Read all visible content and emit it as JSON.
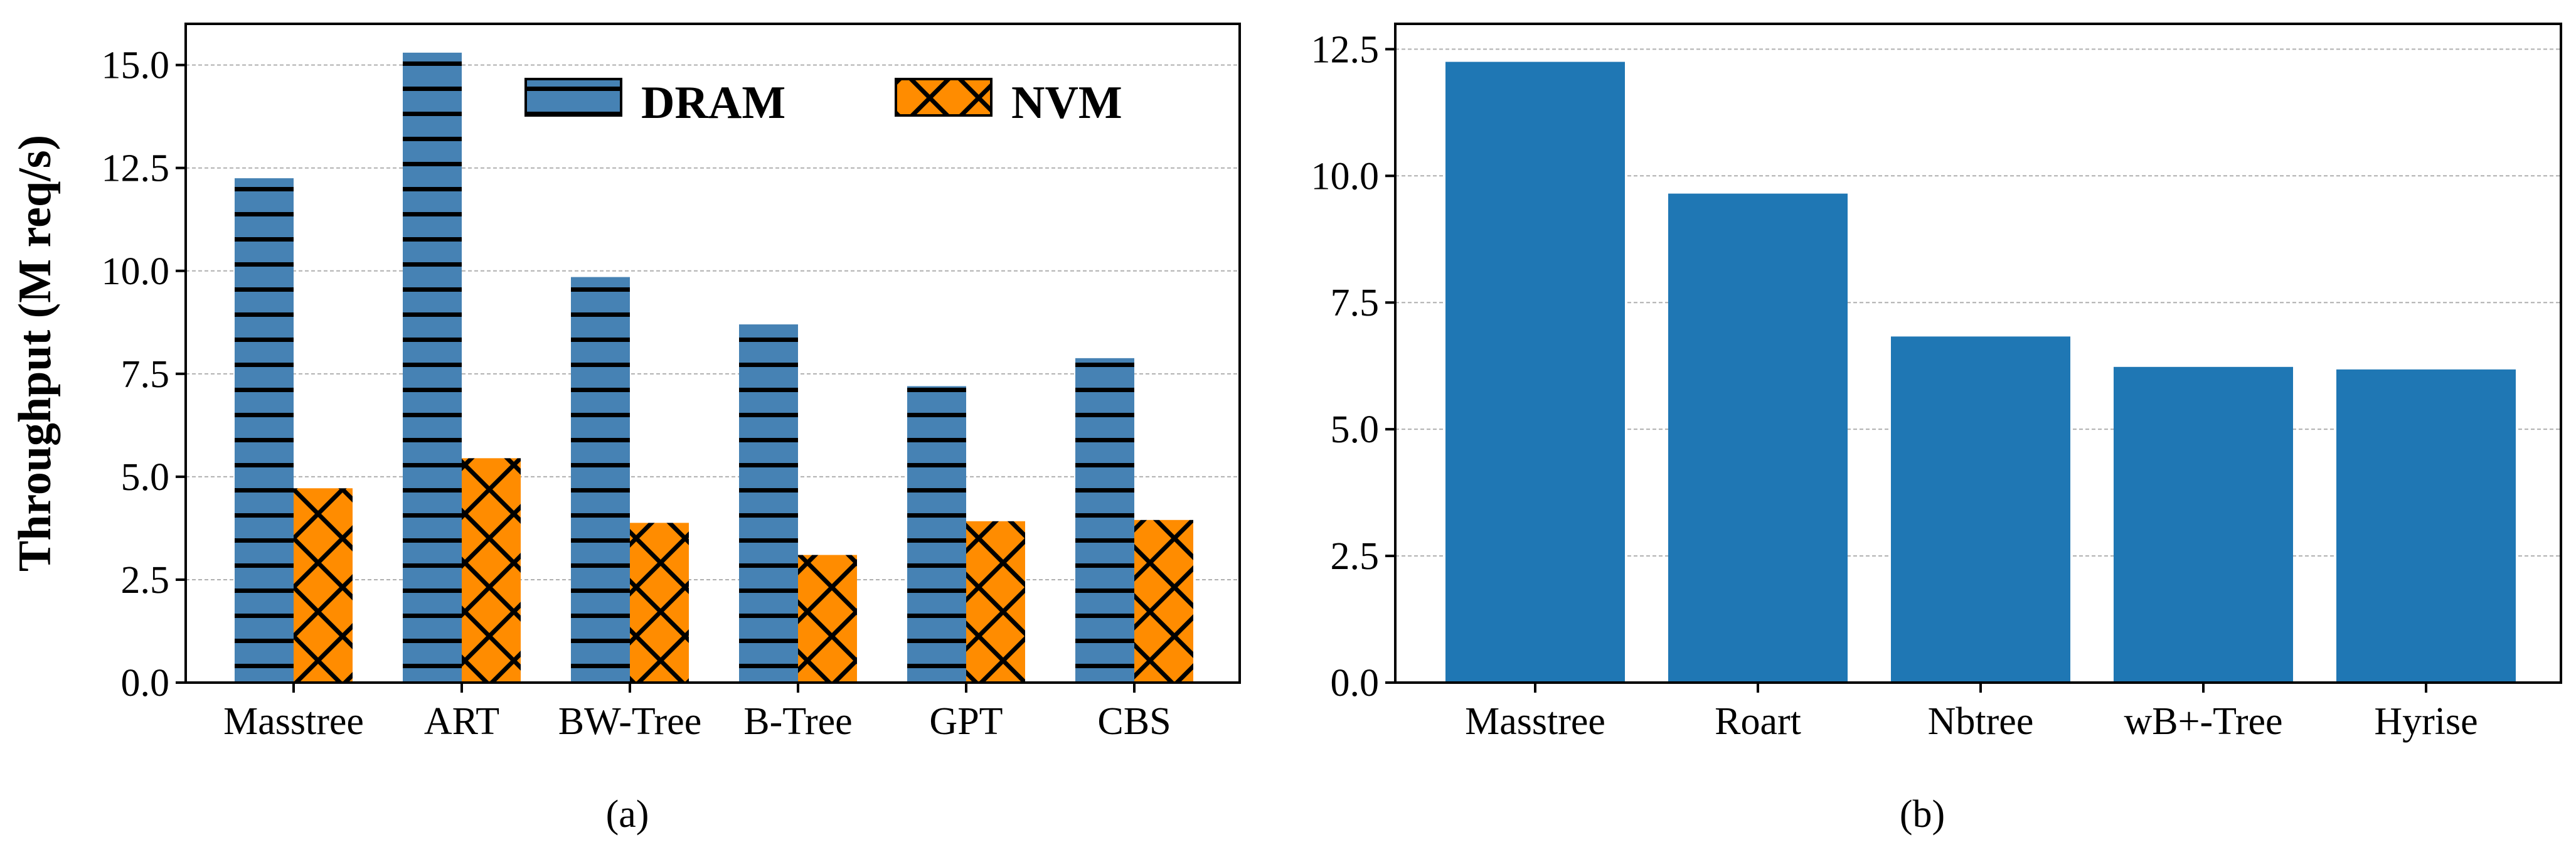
{
  "chart_data": [
    {
      "type": "bar",
      "panel": "a",
      "caption": "(a)",
      "ylabel": "Throughput (M req/s)",
      "ylim": [
        0,
        16
      ],
      "yticks": [
        "0.0",
        "2.5",
        "5.0",
        "7.5",
        "10.0",
        "12.5",
        "15.0"
      ],
      "ytick_values": [
        0,
        2.5,
        5,
        7.5,
        10,
        12.5,
        15
      ],
      "grid": true,
      "legend_position": "top-right",
      "categories": [
        "Masstree",
        "ART",
        "BW-Tree",
        "B-Tree",
        "GPT",
        "CBS"
      ],
      "series": [
        {
          "name": "DRAM",
          "values": [
            12.25,
            15.3,
            9.85,
            8.7,
            7.2,
            7.88
          ],
          "color": "#4682b4",
          "hatch": "horizontal-lines"
        },
        {
          "name": "NVM",
          "values": [
            4.72,
            5.45,
            3.88,
            3.1,
            3.92,
            3.95
          ],
          "color": "#ff8c00",
          "hatch": "cross"
        }
      ]
    },
    {
      "type": "bar",
      "panel": "b",
      "caption": "(b)",
      "ylabel": "",
      "ylim": [
        0,
        13
      ],
      "yticks": [
        "0.0",
        "2.5",
        "5.0",
        "7.5",
        "10.0",
        "12.5"
      ],
      "ytick_values": [
        0,
        2.5,
        5,
        7.5,
        10,
        12.5
      ],
      "grid": true,
      "categories": [
        "Masstree",
        "Roart",
        "Nbtree",
        "wB+-Tree",
        "Hyrise"
      ],
      "series": [
        {
          "name": "",
          "values": [
            12.25,
            9.65,
            6.83,
            6.23,
            6.18
          ],
          "color": "#1f77b4",
          "hatch": "none"
        }
      ]
    }
  ]
}
